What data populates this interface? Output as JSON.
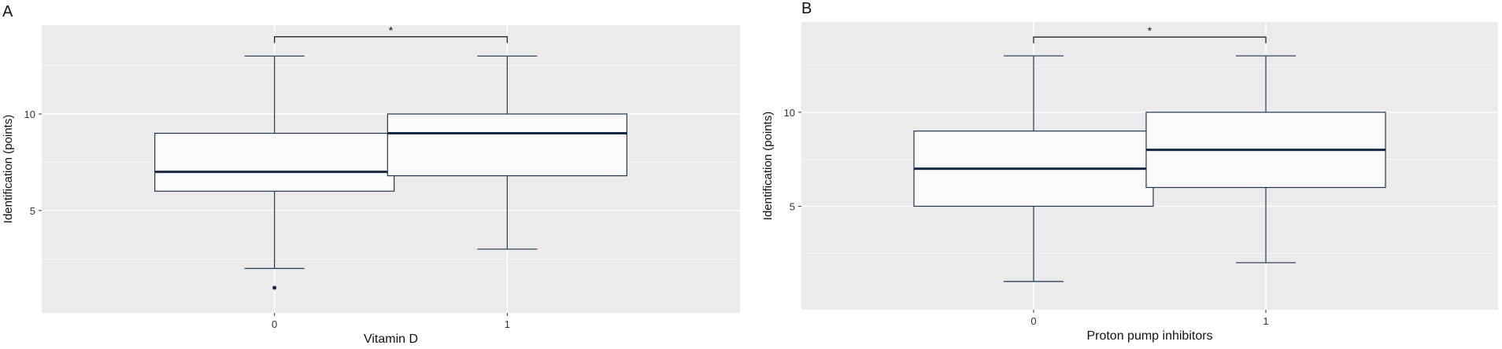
{
  "chart_data": [
    {
      "type": "box",
      "panel_label": "A",
      "xlabel": "Vitamin D",
      "ylabel": "Identification (points)",
      "categories": [
        "0",
        "1"
      ],
      "ylim": [
        -0.3,
        14.6
      ],
      "yticks": [
        5,
        10
      ],
      "grid": true,
      "boxes": [
        {
          "category": "0",
          "whisker_low": 2,
          "q1": 6,
          "median": 7,
          "q3": 9,
          "whisker_high": 13,
          "outliers": [
            1
          ]
        },
        {
          "category": "1",
          "whisker_low": 3,
          "q1": 6.8,
          "median": 9,
          "q3": 10,
          "whisker_high": 13,
          "outliers": []
        }
      ],
      "significance": {
        "from": "0",
        "to": "1",
        "label": "*",
        "y": 14.0
      }
    },
    {
      "type": "box",
      "panel_label": "B",
      "xlabel": "Proton pump inhibitors",
      "ylabel": "Identification (points)",
      "categories": [
        "0",
        "1"
      ],
      "ylim": [
        -0.5,
        14.8
      ],
      "yticks": [
        5,
        10
      ],
      "grid": true,
      "boxes": [
        {
          "category": "0",
          "whisker_low": 1,
          "q1": 5,
          "median": 7,
          "q3": 9,
          "whisker_high": 13,
          "outliers": []
        },
        {
          "category": "1",
          "whisker_low": 2,
          "q1": 6,
          "median": 8,
          "q3": 10,
          "whisker_high": 13,
          "outliers": []
        }
      ],
      "significance": {
        "from": "0",
        "to": "1",
        "label": "*",
        "y": 14.0
      }
    }
  ],
  "colors": {
    "panel_bg": "#ebebeb",
    "grid": "#ffffff",
    "box_fill": "#fafafa",
    "box_stroke": "#1f3550",
    "median": "#152a45",
    "text": "#333333"
  }
}
